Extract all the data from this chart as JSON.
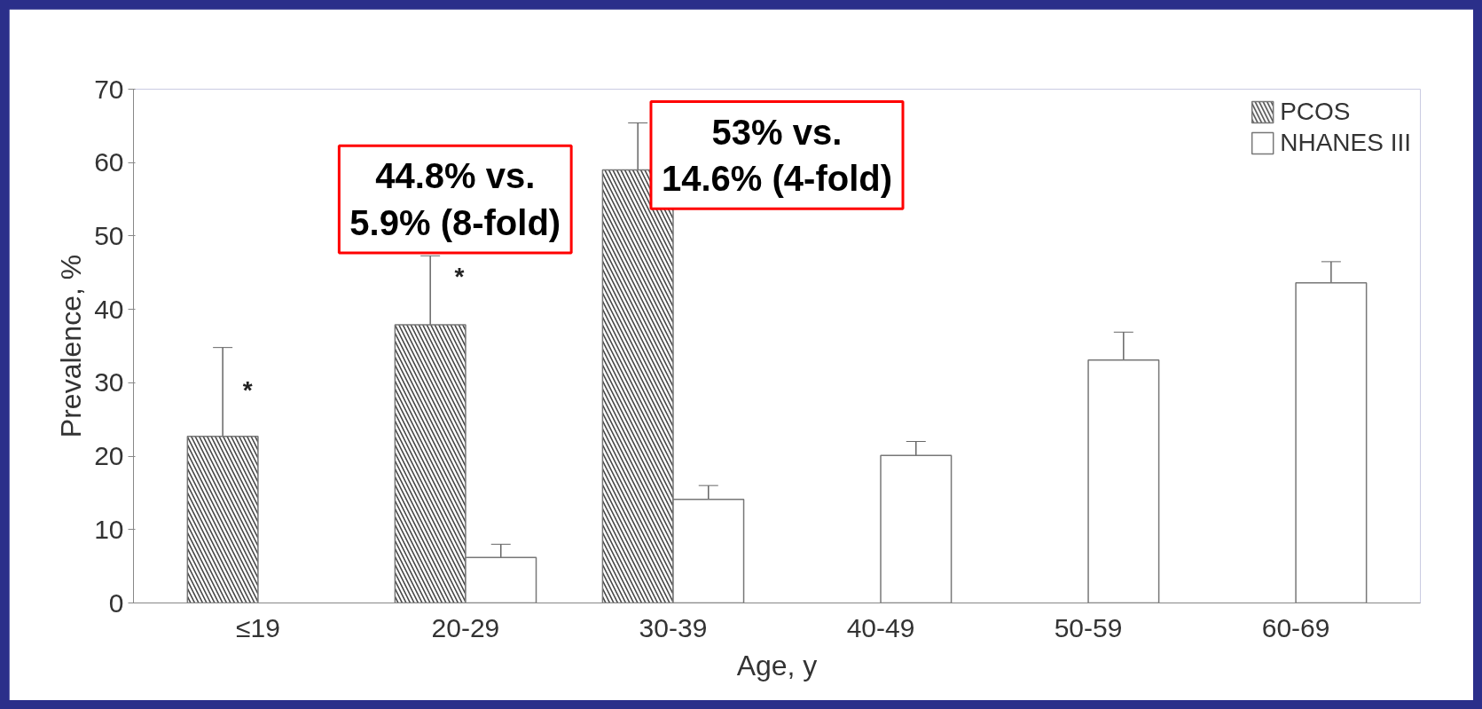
{
  "chart_data": {
    "type": "bar",
    "xlabel": "Age, y",
    "ylabel": "Prevalence, %",
    "categories": [
      "≤19",
      "20-29",
      "30-39",
      "40-49",
      "50-59",
      "60-69"
    ],
    "series": [
      {
        "name": "PCOS",
        "color": "#444444",
        "values": [
          22.7,
          37.9,
          59,
          null,
          null,
          null
        ],
        "errors": [
          12.1,
          9.4,
          6.4,
          null,
          null,
          null
        ]
      },
      {
        "name": "NHANES III",
        "color": "#ffffff",
        "values": [
          null,
          6.2,
          14.1,
          20.1,
          33.1,
          43.6
        ],
        "errors": [
          null,
          1.8,
          1.9,
          1.9,
          3.8,
          2.9
        ]
      }
    ],
    "ylim": [
      0,
      70
    ],
    "yticks": [
      0,
      10,
      20,
      30,
      40,
      50,
      60,
      70
    ],
    "grid": false,
    "legend": "top right",
    "annotations": [
      "*",
      "*",
      "44.8% vs.\n5.9% (8-fold)",
      "53% vs.\n14.6% (4-fold)"
    ]
  }
}
